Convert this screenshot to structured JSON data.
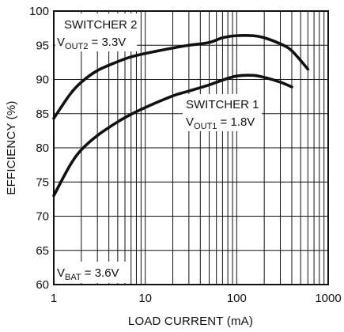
{
  "chart_data": {
    "type": "line",
    "title": "",
    "xlabel": "LOAD CURRENT (mA)",
    "ylabel": "EFFICIENCY (%)",
    "xscale": "log",
    "xlim": [
      1,
      1000
    ],
    "ylim": [
      60,
      100
    ],
    "grid": true,
    "x_ticks": [
      1,
      10,
      100,
      1000
    ],
    "y_ticks": [
      60,
      65,
      70,
      75,
      80,
      85,
      90,
      95,
      100
    ],
    "series": [
      {
        "name": "SWITCHER 2",
        "x": [
          1,
          1.5,
          2,
          3,
          5,
          7,
          10,
          20,
          30,
          50,
          70,
          100,
          150,
          200,
          300,
          400,
          600
        ],
        "y": [
          84.3,
          87.8,
          89.6,
          91.3,
          92.6,
          93.3,
          93.8,
          94.6,
          95.0,
          95.4,
          96.1,
          96.4,
          96.4,
          96.1,
          95.2,
          94.2,
          91.5
        ]
      },
      {
        "name": "SWITCHER 1",
        "x": [
          1,
          1.5,
          2,
          3,
          5,
          7,
          10,
          20,
          30,
          50,
          70,
          100,
          150,
          200,
          300,
          400
        ],
        "y": [
          73.0,
          77.4,
          79.7,
          81.8,
          83.8,
          84.9,
          85.9,
          87.6,
          88.3,
          89.2,
          89.9,
          90.5,
          90.6,
          90.3,
          89.6,
          88.9
        ]
      }
    ],
    "annotations": {
      "switcher2_name": "SWITCHER 2",
      "switcher2_v": "V",
      "switcher2_sub": "OUT2",
      "switcher2_eq": " = 3.3V",
      "switcher1_name": "SWITCHER 1",
      "switcher1_v": "V",
      "switcher1_sub": "OUT1",
      "switcher1_eq": " = 1.8V",
      "vbat_v": "V",
      "vbat_sub": "BAT",
      "vbat_eq": " = 3.6V"
    }
  }
}
